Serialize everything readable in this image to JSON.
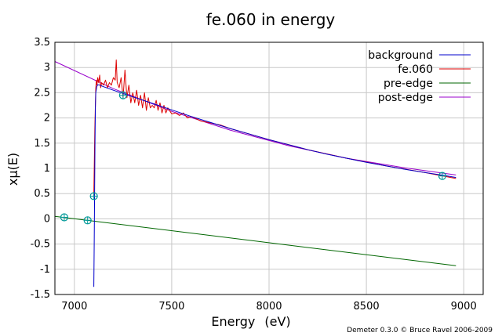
{
  "chart_data": {
    "type": "line",
    "title": "fe.060 in energy",
    "xlabel": "Energy",
    "xlabel_unit": "(eV)",
    "ylabel": "xμ(E)",
    "xlim": [
      6900,
      9100
    ],
    "ylim": [
      -1.5,
      3.5
    ],
    "xticks": [
      7000,
      7500,
      8000,
      8500,
      9000
    ],
    "yticks": [
      -1.5,
      -1,
      -0.5,
      0,
      0.5,
      1,
      1.5,
      2,
      2.5,
      3,
      3.5
    ],
    "ytick_labels": [
      "-1.5",
      "-1",
      "-0.5",
      "0",
      "0.5",
      "1",
      "1.5",
      "2",
      "2.5",
      "3",
      "3.5"
    ],
    "grid": true,
    "legend_position": "top-right",
    "series": [
      {
        "name": "background",
        "color": "#0000cc",
        "x": [
          7100,
          7102,
          7104,
          7106,
          7108,
          7110,
          7115,
          7120,
          7130,
          7150,
          7200,
          7300,
          7400,
          7500,
          7600,
          7700,
          7800,
          7900,
          8000,
          8100,
          8200,
          8300,
          8400,
          8500,
          8600,
          8700,
          8800,
          8900,
          8960
        ],
        "y": [
          -1.35,
          -0.5,
          0.5,
          1.5,
          2.2,
          2.5,
          2.62,
          2.66,
          2.65,
          2.62,
          2.55,
          2.42,
          2.29,
          2.16,
          2.03,
          1.91,
          1.79,
          1.68,
          1.57,
          1.47,
          1.37,
          1.28,
          1.2,
          1.12,
          1.05,
          0.98,
          0.92,
          0.86,
          0.82
        ]
      },
      {
        "name": "fe.060",
        "color": "#dd0000",
        "x": [
          7100,
          7105,
          7110,
          7113,
          7116,
          7120,
          7125,
          7130,
          7135,
          7140,
          7150,
          7160,
          7170,
          7180,
          7190,
          7200,
          7210,
          7215,
          7220,
          7230,
          7240,
          7250,
          7260,
          7270,
          7280,
          7290,
          7300,
          7310,
          7320,
          7330,
          7340,
          7350,
          7360,
          7370,
          7380,
          7390,
          7400,
          7410,
          7420,
          7430,
          7440,
          7450,
          7460,
          7470,
          7480,
          7500,
          7520,
          7540,
          7560,
          7580,
          7600,
          7650,
          7700,
          7750,
          7800,
          8000,
          8200,
          8400,
          8600,
          8800,
          8960
        ],
        "y": [
          0.45,
          1.8,
          2.6,
          2.75,
          2.65,
          2.8,
          2.7,
          2.85,
          2.6,
          2.7,
          2.65,
          2.75,
          2.6,
          2.7,
          2.65,
          2.8,
          2.75,
          3.15,
          2.7,
          2.6,
          2.8,
          2.4,
          2.95,
          2.4,
          2.65,
          2.3,
          2.5,
          2.3,
          2.55,
          2.25,
          2.45,
          2.2,
          2.5,
          2.15,
          2.4,
          2.2,
          2.25,
          2.2,
          2.35,
          2.15,
          2.3,
          2.1,
          2.25,
          2.1,
          2.2,
          2.08,
          2.1,
          2.05,
          2.1,
          2.0,
          2.03,
          1.94,
          1.9,
          1.86,
          1.79,
          1.57,
          1.37,
          1.2,
          1.05,
          0.92,
          0.8
        ]
      },
      {
        "name": "pre-edge",
        "color": "#006600",
        "x": [
          6900,
          8960
        ],
        "y": [
          0.05,
          -0.93
        ]
      },
      {
        "name": "post-edge",
        "color": "#9900cc",
        "x": [
          6900,
          7200,
          7500,
          7800,
          8100,
          8400,
          8700,
          8960
        ],
        "y": [
          3.12,
          2.58,
          2.13,
          1.76,
          1.45,
          1.2,
          1.01,
          0.87
        ]
      }
    ],
    "markers": {
      "color": "#009999",
      "points": [
        {
          "x": 6948,
          "y": 0.03
        },
        {
          "x": 7068,
          "y": -0.03
        },
        {
          "x": 7100,
          "y": 0.45
        },
        {
          "x": 7250,
          "y": 2.45
        },
        {
          "x": 8890,
          "y": 0.85
        }
      ]
    },
    "credit": "Demeter 0.3.0 © Bruce Ravel 2006-2009"
  }
}
